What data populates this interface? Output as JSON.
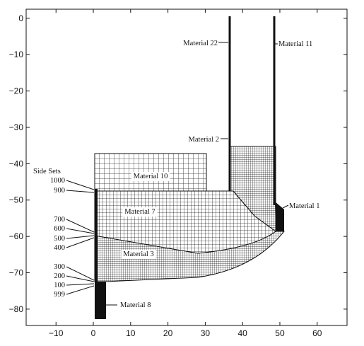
{
  "chart_data": {
    "type": "diagram",
    "x_ticks": [
      -10,
      0,
      10,
      20,
      30,
      40,
      50,
      60
    ],
    "y_ticks": [
      0,
      -10,
      -20,
      -30,
      -40,
      -50,
      -60,
      -70,
      -80
    ],
    "xlim": [
      -18,
      68
    ],
    "ylim": [
      -84.5,
      2.5
    ],
    "material_labels": [
      "Material 22",
      "Material 11",
      "Material 2",
      "Material 10",
      "Material 1",
      "Material 7",
      "Material 3",
      "Material 8"
    ],
    "side_sets_title": "Side Sets",
    "side_sets": [
      "1000",
      "900",
      "700",
      "600",
      "500",
      "400",
      "300",
      "200",
      "100",
      "999"
    ]
  }
}
